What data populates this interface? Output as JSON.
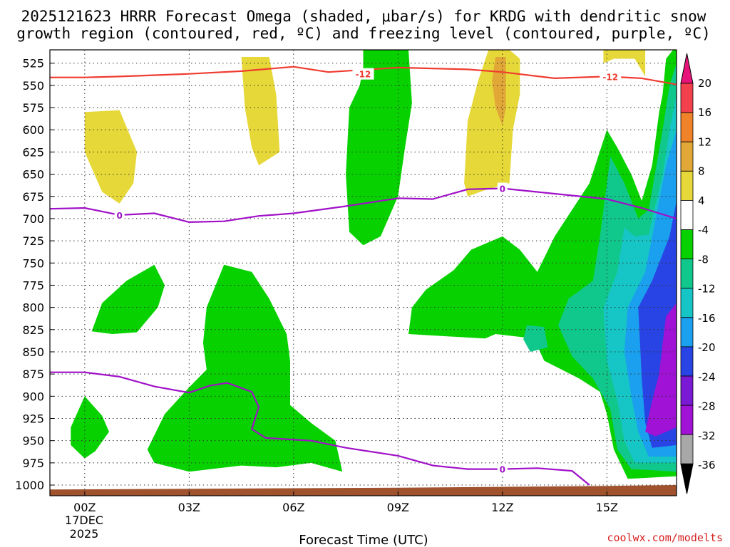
{
  "chart_data": {
    "type": "contour-crosssection",
    "title_line1": "2025121623 HRRR Forecast Omega (shaded, μbar/s) for KRDG with dendritic snow",
    "title_line2": "growth region (contoured, red, ºC) and freezing level (contoured, purple, ºC)",
    "xlabel": "Forecast Time (UTC)",
    "xlim_hours": [
      -1,
      17
    ],
    "x_ticks": [
      {
        "hour": 0,
        "label": "00Z"
      },
      {
        "hour": 3,
        "label": "03Z"
      },
      {
        "hour": 6,
        "label": "06Z"
      },
      {
        "hour": 9,
        "label": "09Z"
      },
      {
        "hour": 12,
        "label": "12Z"
      },
      {
        "hour": 15,
        "label": "15Z"
      }
    ],
    "x_date_label": [
      "17DEC",
      "2025"
    ],
    "y_unit": "hPa",
    "ylim": [
      510,
      1012
    ],
    "y_ticks": [
      525,
      550,
      575,
      600,
      625,
      650,
      675,
      700,
      725,
      750,
      775,
      800,
      825,
      850,
      875,
      900,
      925,
      950,
      975,
      1000
    ],
    "colorbar": {
      "labels": [
        "20",
        "16",
        "12",
        "8",
        "4",
        "-4",
        "-8",
        "-12",
        "-16",
        "-20",
        "-24",
        "-28",
        "-32",
        "-36"
      ],
      "bins": [
        {
          "range": [
            16,
            20
          ],
          "color": "#f2404d"
        },
        {
          "range": [
            12,
            16
          ],
          "color": "#f0822a"
        },
        {
          "range": [
            8,
            12
          ],
          "color": "#e2a837"
        },
        {
          "range": [
            4,
            8
          ],
          "color": "#e6d838"
        },
        {
          "range": [
            -4,
            4
          ],
          "color": "#ffffff"
        },
        {
          "range": [
            -8,
            -4
          ],
          "color": "#07d200"
        },
        {
          "range": [
            -12,
            -8
          ],
          "color": "#10c88b"
        },
        {
          "range": [
            -16,
            -12
          ],
          "color": "#16c6c6"
        },
        {
          "range": [
            -20,
            -16
          ],
          "color": "#1aa0ee"
        },
        {
          "range": [
            -24,
            -20
          ],
          "color": "#2844e4"
        },
        {
          "range": [
            -28,
            -24
          ],
          "color": "#7a1ad4"
        },
        {
          "range": [
            -32,
            -28
          ],
          "color": "#a012d6"
        },
        {
          "range": [
            -36,
            -32
          ],
          "color": "#a8a8a8"
        }
      ],
      "over_color": "#e6147a",
      "under_color": "#000000"
    },
    "regions": [
      {
        "name": "yellow-zone-a",
        "color": "#e6d838",
        "points": [
          [
            0,
            580
          ],
          [
            1,
            578
          ],
          [
            1.5,
            625
          ],
          [
            1.4,
            660
          ],
          [
            1,
            683
          ],
          [
            0.5,
            670
          ],
          [
            0,
            625
          ]
        ]
      },
      {
        "name": "yellow-zone-b",
        "color": "#e6d838",
        "points": [
          [
            4.5,
            518
          ],
          [
            5.3,
            518
          ],
          [
            5.5,
            560
          ],
          [
            5.6,
            625
          ],
          [
            5,
            640
          ],
          [
            4.8,
            620
          ],
          [
            4.6,
            575
          ]
        ]
      },
      {
        "name": "yellow-zone-c",
        "color": "#e6d838",
        "points": [
          [
            11.6,
            510
          ],
          [
            12.2,
            510
          ],
          [
            12.5,
            520
          ],
          [
            12.5,
            560
          ],
          [
            12.3,
            600
          ],
          [
            12.2,
            660
          ],
          [
            11.5,
            668
          ],
          [
            11,
            675
          ],
          [
            10.9,
            660
          ],
          [
            11,
            590
          ],
          [
            11.3,
            545
          ]
        ]
      },
      {
        "name": "yellow-zone-d",
        "color": "#e6d838",
        "points": [
          [
            14.9,
            510
          ],
          [
            16.1,
            510
          ],
          [
            16.1,
            540
          ],
          [
            15.8,
            520
          ],
          [
            15.2,
            520
          ],
          [
            14.9,
            525
          ]
        ]
      },
      {
        "name": "orange-zone",
        "color": "#e2a837",
        "points": [
          [
            11.8,
            518
          ],
          [
            12.1,
            518
          ],
          [
            12.1,
            575
          ],
          [
            12,
            595
          ],
          [
            11.8,
            575
          ],
          [
            11.7,
            545
          ]
        ]
      },
      {
        "name": "green-zone-a",
        "color": "#07d200",
        "points": [
          [
            8,
            510
          ],
          [
            9.3,
            510
          ],
          [
            9.4,
            570
          ],
          [
            9.2,
            620
          ],
          [
            9,
            675
          ],
          [
            8.5,
            720
          ],
          [
            8,
            730
          ],
          [
            7.6,
            715
          ],
          [
            7.5,
            650
          ],
          [
            7.6,
            575
          ],
          [
            7.9,
            550
          ],
          [
            8,
            530
          ]
        ]
      },
      {
        "name": "green-zone-b",
        "color": "#07d200",
        "points": [
          [
            0.5,
            795
          ],
          [
            1.2,
            770
          ],
          [
            2,
            752
          ],
          [
            2.3,
            775
          ],
          [
            2.1,
            800
          ],
          [
            1.5,
            828
          ],
          [
            0.8,
            830
          ],
          [
            0.2,
            827
          ]
        ]
      },
      {
        "name": "green-zone-c",
        "color": "#07d200",
        "points": [
          [
            3.5,
            800
          ],
          [
            4,
            752
          ],
          [
            4.8,
            760
          ],
          [
            5.3,
            790
          ],
          [
            5.8,
            830
          ],
          [
            5.9,
            860
          ],
          [
            5.9,
            910
          ],
          [
            6.5,
            930
          ],
          [
            7.2,
            950
          ],
          [
            7.4,
            985
          ],
          [
            6.5,
            975
          ],
          [
            5.5,
            980
          ],
          [
            4.5,
            978
          ],
          [
            3,
            985
          ],
          [
            2,
            975
          ],
          [
            1.8,
            960
          ],
          [
            2.3,
            920
          ],
          [
            3,
            890
          ],
          [
            3.5,
            870
          ],
          [
            3.4,
            840
          ]
        ]
      },
      {
        "name": "green-zone-d",
        "color": "#07d200",
        "points": [
          [
            -0.4,
            935
          ],
          [
            0,
            900
          ],
          [
            0.5,
            922
          ],
          [
            0.7,
            940
          ],
          [
            0.3,
            962
          ],
          [
            0,
            970
          ],
          [
            -0.4,
            955
          ]
        ]
      },
      {
        "name": "green-zone-e",
        "color": "#07d200",
        "points": [
          [
            16.9,
            510
          ],
          [
            17,
            510
          ],
          [
            17,
            990
          ],
          [
            15.6,
            993
          ],
          [
            15.2,
            960
          ],
          [
            15,
            920
          ],
          [
            14.8,
            895
          ],
          [
            14.2,
            880
          ],
          [
            13.2,
            860
          ],
          [
            12.9,
            835
          ],
          [
            11.8,
            830
          ],
          [
            11.5,
            835
          ],
          [
            9.3,
            830
          ],
          [
            9.4,
            800
          ],
          [
            9.8,
            780
          ],
          [
            10.6,
            758
          ],
          [
            11.1,
            735
          ],
          [
            12,
            720
          ],
          [
            12.5,
            735
          ],
          [
            13,
            760
          ],
          [
            13.5,
            720
          ],
          [
            14,
            690
          ],
          [
            14.5,
            660
          ],
          [
            15,
            600
          ],
          [
            15.3,
            620
          ],
          [
            15.7,
            650
          ],
          [
            16,
            680
          ],
          [
            16.3,
            640
          ],
          [
            16.5,
            580
          ],
          [
            16.6,
            560
          ],
          [
            16.7,
            520
          ]
        ]
      },
      {
        "name": "teal-zone-a",
        "color": "#10c88b",
        "points": [
          [
            14.6,
            770
          ],
          [
            14.8,
            720
          ],
          [
            15,
            660
          ],
          [
            15.1,
            630
          ],
          [
            15.5,
            660
          ],
          [
            15.9,
            700
          ],
          [
            16.2,
            690
          ],
          [
            16.6,
            600
          ],
          [
            16.8,
            550
          ],
          [
            17,
            525
          ],
          [
            17,
            985
          ],
          [
            15.7,
            982
          ],
          [
            15.3,
            960
          ],
          [
            15.1,
            915
          ],
          [
            14.6,
            880
          ],
          [
            14,
            855
          ],
          [
            13.6,
            820
          ],
          [
            13.9,
            790
          ]
        ]
      },
      {
        "name": "teal-zone-b",
        "color": "#10c88b",
        "points": [
          [
            12.7,
            820
          ],
          [
            13.2,
            822
          ],
          [
            13.3,
            845
          ],
          [
            12.8,
            850
          ],
          [
            12.6,
            836
          ]
        ]
      },
      {
        "name": "cyan-zone",
        "color": "#16c6c6",
        "points": [
          [
            15.3,
            760
          ],
          [
            15.5,
            710
          ],
          [
            15.8,
            720
          ],
          [
            16.2,
            718
          ],
          [
            16.6,
            650
          ],
          [
            16.8,
            600
          ],
          [
            17,
            560
          ],
          [
            17,
            975
          ],
          [
            15.8,
            975
          ],
          [
            15.5,
            950
          ],
          [
            15.3,
            905
          ],
          [
            15,
            860
          ],
          [
            14.9,
            800
          ]
        ]
      },
      {
        "name": "lightblue-zone",
        "color": "#1aa0ee",
        "points": [
          [
            16.1,
            760
          ],
          [
            16.4,
            700
          ],
          [
            16.7,
            640
          ],
          [
            17,
            600
          ],
          [
            17,
            968
          ],
          [
            16.2,
            968
          ],
          [
            15.9,
            940
          ],
          [
            15.7,
            900
          ],
          [
            15.5,
            850
          ],
          [
            15.6,
            800
          ]
        ]
      },
      {
        "name": "blue-zone",
        "color": "#2844e4",
        "points": [
          [
            16.8,
            720
          ],
          [
            17,
            680
          ],
          [
            17,
            955
          ],
          [
            16.3,
            958
          ],
          [
            16.1,
            930
          ],
          [
            16,
            880
          ],
          [
            15.9,
            800
          ],
          [
            16.3,
            770
          ]
        ]
      },
      {
        "name": "violet-zone",
        "color": "#a012d6",
        "points": [
          [
            16.7,
            810
          ],
          [
            17,
            795
          ],
          [
            17,
            935
          ],
          [
            16.4,
            945
          ],
          [
            16.1,
            940
          ],
          [
            16.3,
            905
          ],
          [
            16.5,
            875
          ],
          [
            16.6,
            840
          ]
        ]
      }
    ],
    "ground": {
      "color": "#a0522d",
      "points": [
        [
          -1,
          1005
        ],
        [
          4,
          1004
        ],
        [
          9,
          1003
        ],
        [
          12,
          1002
        ],
        [
          15,
          1001
        ],
        [
          17,
          1000
        ],
        [
          17,
          1012
        ],
        [
          -1,
          1012
        ]
      ]
    },
    "contours": [
      {
        "name": "dgz-minus12-line",
        "value_label": "-12",
        "color": "#f03c30",
        "label_positions": [
          [
            8.0,
            537
          ],
          [
            15.1,
            540
          ]
        ],
        "points": [
          [
            -1,
            541
          ],
          [
            0,
            541
          ],
          [
            1,
            540
          ],
          [
            3,
            537
          ],
          [
            4.5,
            534
          ],
          [
            6,
            529
          ],
          [
            7,
            535
          ],
          [
            9,
            530
          ],
          [
            11,
            532
          ],
          [
            12,
            535
          ],
          [
            13.5,
            542
          ],
          [
            15,
            540
          ],
          [
            16,
            542
          ],
          [
            17,
            549
          ]
        ]
      },
      {
        "name": "freezing-level-upper",
        "value_label": "0",
        "color": "#a010c8",
        "label_positions": [
          [
            1,
            696
          ],
          [
            12,
            666
          ]
        ],
        "points": [
          [
            -1,
            689
          ],
          [
            0,
            688
          ],
          [
            1,
            696
          ],
          [
            2,
            694
          ],
          [
            3,
            704
          ],
          [
            4,
            703
          ],
          [
            5,
            697
          ],
          [
            6,
            694
          ],
          [
            7.5,
            686
          ],
          [
            9,
            677
          ],
          [
            10,
            678
          ],
          [
            11,
            667
          ],
          [
            12,
            666
          ],
          [
            13,
            670
          ],
          [
            14,
            674
          ],
          [
            15,
            678
          ],
          [
            16,
            688
          ],
          [
            17,
            700
          ]
        ]
      },
      {
        "name": "freezing-level-lower",
        "value_label": "0",
        "color": "#a010c8",
        "label_positions": [
          [
            12,
            982
          ]
        ],
        "points": [
          [
            -1,
            873
          ],
          [
            0,
            873
          ],
          [
            1,
            878
          ],
          [
            2,
            889
          ],
          [
            3,
            896
          ],
          [
            3.6,
            888
          ],
          [
            4.1,
            885
          ],
          [
            4.8,
            895
          ],
          [
            5.0,
            912
          ],
          [
            4.8,
            937
          ],
          [
            5.2,
            947
          ],
          [
            6.5,
            950
          ],
          [
            7.5,
            958
          ],
          [
            9,
            967
          ],
          [
            10,
            978
          ],
          [
            11,
            982
          ],
          [
            12,
            982
          ],
          [
            13,
            981
          ],
          [
            14,
            984
          ],
          [
            14.5,
            1000
          ]
        ]
      }
    ],
    "credit": "coolwx.com/modelts"
  }
}
